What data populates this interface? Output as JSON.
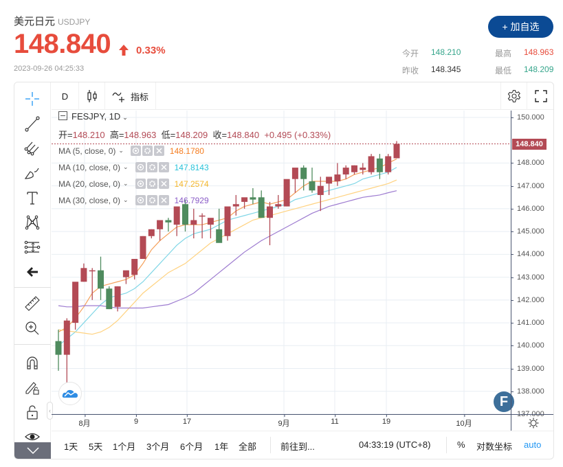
{
  "header": {
    "name": "美元日元",
    "code": "USDJPY",
    "price": "148.840",
    "change_pct": "0.33%",
    "timestamp": "2023-09-26 04:25:33",
    "add_button": "+ 加自选",
    "stats": {
      "open_label": "今开",
      "open_value": "148.210",
      "prev_close_label": "昨收",
      "prev_close_value": "148.345",
      "high_label": "最高",
      "high_value": "148.963",
      "low_label": "最低",
      "low_value": "148.209"
    }
  },
  "toolbar": {
    "interval": "D",
    "indicators_label": "指标"
  },
  "legend": {
    "title": "FESJPY, 1D",
    "open_label": "开=",
    "open": "148.210",
    "high_label": "高=",
    "high": "148.963",
    "low_label": "低=",
    "low": "148.209",
    "close_label": "收=",
    "close": "148.840",
    "change": "+0.495 (+0.33%)",
    "ma": [
      {
        "label": "MA (5, close, 0)",
        "value": "148.1780",
        "color": "#f57c1f"
      },
      {
        "label": "MA (10, close, 0)",
        "value": "147.8143",
        "color": "#27c2d9"
      },
      {
        "label": "MA (20, close, 0)",
        "value": "147.2574",
        "color": "#f5b72b"
      },
      {
        "label": "MA (30, close, 0)",
        "value": "146.7929",
        "color": "#8a5cc7"
      }
    ]
  },
  "y_axis": {
    "ticks": [
      "150.000",
      "148.000",
      "147.000",
      "146.000",
      "145.000",
      "144.000",
      "143.000",
      "142.000",
      "141.000",
      "140.000",
      "139.000",
      "138.000",
      "137.000"
    ],
    "current_price_tag": "148.840"
  },
  "x_axis": {
    "ticks": [
      "8月",
      "9",
      "17",
      "9月",
      "11",
      "19",
      "10月"
    ]
  },
  "bottom_bar": {
    "ranges": [
      "1天",
      "5天",
      "1个月",
      "3个月",
      "6个月",
      "1年",
      "全部"
    ],
    "goto": "前往到...",
    "clock": "04:33:19 (UTC+8)",
    "percent": "%",
    "log_scale": "对数坐标",
    "auto": "auto"
  },
  "colors": {
    "up": "#b34a55",
    "down": "#4f8b5e",
    "accent": "#0b4a94",
    "price_red": "#e74c3c",
    "stat_green": "#35a58b"
  },
  "chart_data": {
    "type": "candlestick",
    "title": "FESJPY, 1D",
    "ylim": [
      137.0,
      150.3
    ],
    "grid": true,
    "x_tick_labels": [
      "8月",
      "9",
      "17",
      "9月",
      "11",
      "19",
      "10月"
    ],
    "candles": [
      {
        "o": 140.2,
        "h": 140.7,
        "l": 138.9,
        "c": 139.6
      },
      {
        "o": 139.6,
        "h": 141.2,
        "l": 138.2,
        "c": 141.1
      },
      {
        "o": 141.0,
        "h": 142.6,
        "l": 140.7,
        "c": 142.8
      },
      {
        "o": 142.8,
        "h": 143.6,
        "l": 142.8,
        "c": 143.4
      },
      {
        "o": 143.3,
        "h": 143.4,
        "l": 142.0,
        "c": 143.3
      },
      {
        "o": 143.3,
        "h": 143.9,
        "l": 142.0,
        "c": 142.5
      },
      {
        "o": 142.5,
        "h": 142.6,
        "l": 141.6,
        "c": 141.6
      },
      {
        "o": 141.7,
        "h": 142.6,
        "l": 141.5,
        "c": 142.6
      },
      {
        "o": 143.0,
        "h": 143.2,
        "l": 142.7,
        "c": 143.3
      },
      {
        "o": 143.1,
        "h": 143.8,
        "l": 142.9,
        "c": 143.8
      },
      {
        "o": 143.8,
        "h": 144.8,
        "l": 143.8,
        "c": 144.8
      },
      {
        "o": 144.8,
        "h": 145.1,
        "l": 144.7,
        "c": 145.1
      },
      {
        "o": 145.1,
        "h": 145.4,
        "l": 144.6,
        "c": 145.5
      },
      {
        "o": 145.5,
        "h": 145.6,
        "l": 145.0,
        "c": 145.4
      },
      {
        "o": 145.3,
        "h": 145.6,
        "l": 144.8,
        "c": 146.1
      },
      {
        "o": 146.2,
        "h": 146.4,
        "l": 145.0,
        "c": 145.3
      },
      {
        "o": 145.3,
        "h": 146.0,
        "l": 144.7,
        "c": 145.5
      },
      {
        "o": 145.7,
        "h": 145.8,
        "l": 144.7,
        "c": 145.7
      },
      {
        "o": 145.3,
        "h": 145.4,
        "l": 144.7,
        "c": 145.6
      },
      {
        "o": 145.1,
        "h": 146.0,
        "l": 144.6,
        "c": 144.5
      },
      {
        "o": 144.8,
        "h": 146.0,
        "l": 144.6,
        "c": 146.1
      },
      {
        "o": 146.1,
        "h": 146.6,
        "l": 145.7,
        "c": 146.2
      },
      {
        "o": 146.3,
        "h": 146.4,
        "l": 146.0,
        "c": 146.5
      },
      {
        "o": 146.5,
        "h": 146.9,
        "l": 146.2,
        "c": 146.4
      },
      {
        "o": 146.5,
        "h": 146.8,
        "l": 146.0,
        "c": 145.6
      },
      {
        "o": 145.6,
        "h": 146.3,
        "l": 144.4,
        "c": 146.1
      },
      {
        "o": 146.1,
        "h": 146.6,
        "l": 146.0,
        "c": 146.2
      },
      {
        "o": 146.1,
        "h": 147.0,
        "l": 146.1,
        "c": 147.3
      },
      {
        "o": 147.3,
        "h": 147.6,
        "l": 146.7,
        "c": 147.8
      },
      {
        "o": 147.8,
        "h": 147.9,
        "l": 146.8,
        "c": 147.3
      },
      {
        "o": 147.2,
        "h": 147.8,
        "l": 146.7,
        "c": 146.8
      },
      {
        "o": 146.6,
        "h": 147.4,
        "l": 145.9,
        "c": 147.0
      },
      {
        "o": 147.1,
        "h": 147.3,
        "l": 146.6,
        "c": 147.4
      },
      {
        "o": 147.2,
        "h": 148.0,
        "l": 147.0,
        "c": 147.5
      },
      {
        "o": 147.5,
        "h": 147.9,
        "l": 147.3,
        "c": 147.8
      },
      {
        "o": 147.6,
        "h": 147.9,
        "l": 147.5,
        "c": 147.9
      },
      {
        "o": 147.7,
        "h": 148.0,
        "l": 147.5,
        "c": 147.8
      },
      {
        "o": 147.6,
        "h": 148.4,
        "l": 147.5,
        "c": 148.3
      },
      {
        "o": 148.2,
        "h": 148.4,
        "l": 147.3,
        "c": 147.6
      },
      {
        "o": 147.6,
        "h": 148.4,
        "l": 147.5,
        "c": 148.3
      },
      {
        "o": 148.21,
        "h": 148.963,
        "l": 148.209,
        "c": 148.84
      }
    ],
    "series": [
      {
        "name": "MA5",
        "color": "#f5a05a",
        "values": [
          140.6,
          140.8,
          141.2,
          141.7,
          142.3,
          142.6,
          142.7,
          142.8,
          142.9,
          143.1,
          143.6,
          144.2,
          144.6,
          144.9,
          145.2,
          145.3,
          145.3,
          145.3,
          145.4,
          145.5,
          145.6,
          145.9,
          146.1,
          146.2,
          146.3,
          146.2,
          146.3,
          146.4,
          146.7,
          147.0,
          147.2,
          147.2,
          147.2,
          147.2,
          147.3,
          147.5,
          147.6,
          147.7,
          147.8,
          148.0,
          148.18
        ]
      },
      {
        "name": "MA10",
        "color": "#7fd6e6",
        "values": [
          140.0,
          140.3,
          140.6,
          141.0,
          141.4,
          141.8,
          142.1,
          142.2,
          142.3,
          142.5,
          142.8,
          143.2,
          143.6,
          144.0,
          144.4,
          144.7,
          144.9,
          145.0,
          145.1,
          145.3,
          145.5,
          145.6,
          145.7,
          145.8,
          145.9,
          146.0,
          146.1,
          146.2,
          146.4,
          146.5,
          146.6,
          146.7,
          146.8,
          146.9,
          147.0,
          147.1,
          147.3,
          147.4,
          147.5,
          147.6,
          147.81
        ]
      },
      {
        "name": "MA20",
        "color": "#ffd27f",
        "values": [
          140.7,
          140.65,
          140.6,
          140.55,
          140.5,
          140.6,
          140.8,
          141.1,
          141.5,
          141.9,
          142.3,
          142.6,
          142.9,
          143.2,
          143.4,
          143.6,
          143.9,
          144.2,
          144.5,
          144.7,
          144.9,
          145.1,
          145.3,
          145.5,
          145.6,
          145.7,
          145.8,
          145.9,
          146.0,
          146.1,
          146.2,
          146.3,
          146.4,
          146.5,
          146.6,
          146.7,
          146.8,
          146.9,
          147.0,
          147.1,
          147.26
        ]
      },
      {
        "name": "MA30",
        "color": "#9d7bd0",
        "values": [
          141.75,
          141.7,
          141.7,
          141.75,
          141.75,
          141.75,
          141.7,
          141.65,
          141.65,
          141.65,
          141.65,
          141.7,
          141.75,
          141.8,
          141.95,
          142.1,
          142.3,
          142.6,
          142.9,
          143.2,
          143.5,
          143.8,
          144.1,
          144.35,
          144.6,
          144.8,
          145.0,
          145.2,
          145.4,
          145.6,
          145.8,
          145.95,
          146.1,
          146.2,
          146.3,
          146.4,
          146.5,
          146.55,
          146.6,
          146.7,
          146.79
        ]
      }
    ]
  }
}
